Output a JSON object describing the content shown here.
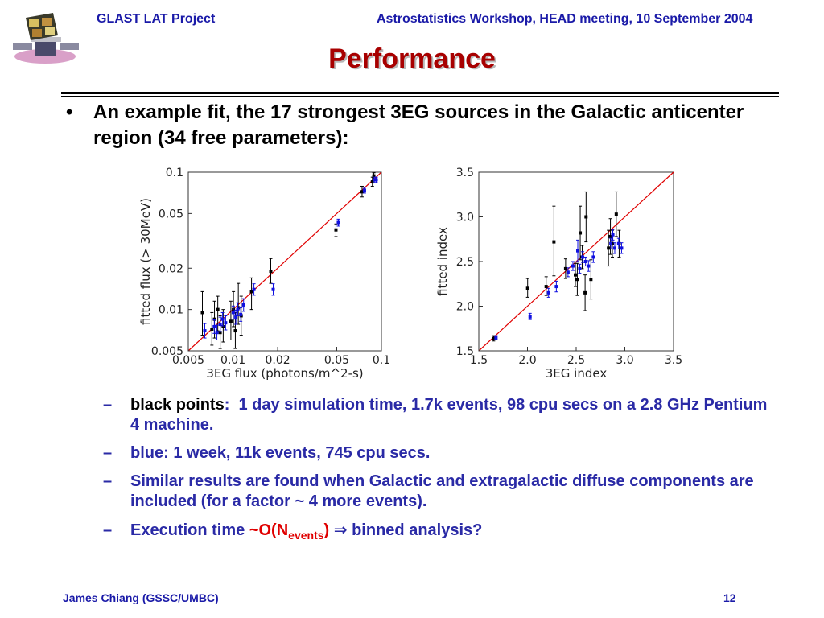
{
  "header": {
    "left": "GLAST LAT Project",
    "right": "Astrostatistics Workshop, HEAD meeting, 10 September 2004"
  },
  "title": "Performance",
  "bullet": {
    "symbol": "•",
    "text": "An example fit, the 17 strongest 3EG sources in the Galactic anticenter region (34 free parameters):"
  },
  "subbullets": {
    "dash": "–",
    "item1": {
      "label": "black points",
      "colon": ":",
      "text": "  1 day simulation time, 1.7k events, 98 cpu secs on a 2.8 GHz Pentium 4 machine."
    },
    "item2": {
      "text": "blue: 1 week, 11k events, 745 cpu secs."
    },
    "item3": {
      "text": "Similar results are found when Galactic and extragalactic diffuse components are included (for a factor ~ 4 more events)."
    },
    "item4": {
      "pre": "Execution time ",
      "tilde": "~",
      "o": "O(N",
      "sub": "events",
      "close": ")",
      "arrow": " ⇒",
      "post": " binned analysis?"
    }
  },
  "footer": {
    "left": "James Chiang (GSSC/UMBC)",
    "right": "12"
  },
  "colors": {
    "header": "#1a1aa8",
    "title": "#a80000",
    "subbullet": "#2a2aa6",
    "highlight": "#e00000",
    "black_points": "#000000",
    "blue_points": "#1010e0",
    "fit_line": "#e00000"
  },
  "chart_data": [
    {
      "type": "scatter",
      "title": "",
      "xlabel": "3EG flux (photons/m^2-s)",
      "ylabel": "fitted flux (> 30MeV)",
      "x_scale": "log",
      "y_scale": "log",
      "xlim": [
        0.005,
        0.1
      ],
      "ylim": [
        0.005,
        0.1
      ],
      "x_ticks": [
        0.005,
        0.01,
        0.02,
        0.05,
        0.1
      ],
      "x_tick_labels": [
        "0.005",
        "0.01",
        "0.02",
        "0.05",
        "0.1"
      ],
      "y_ticks": [
        0.005,
        0.01,
        0.02,
        0.05,
        0.1
      ],
      "y_tick_labels": [
        "0.005",
        "0.01",
        "0.02",
        "0.05",
        "0.1"
      ],
      "reference_line": "y = x",
      "grid": false,
      "series": [
        {
          "color": "black",
          "points": [
            {
              "x": 0.0063,
              "y": 0.0095,
              "lo": 0.0065,
              "hi": 0.0135
            },
            {
              "x": 0.0073,
              "y": 0.0072,
              "lo": 0.0055,
              "hi": 0.0095
            },
            {
              "x": 0.0076,
              "y": 0.0085,
              "lo": 0.0062,
              "hi": 0.0115
            },
            {
              "x": 0.008,
              "y": 0.01,
              "lo": 0.007,
              "hi": 0.0125
            },
            {
              "x": 0.0083,
              "y": 0.0068,
              "lo": 0.0052,
              "hi": 0.009
            },
            {
              "x": 0.0087,
              "y": 0.0075,
              "lo": 0.0058,
              "hi": 0.01
            },
            {
              "x": 0.0098,
              "y": 0.0082,
              "lo": 0.006,
              "hi": 0.0115
            },
            {
              "x": 0.0102,
              "y": 0.01,
              "lo": 0.0075,
              "hi": 0.0135
            },
            {
              "x": 0.0105,
              "y": 0.007,
              "lo": 0.0052,
              "hi": 0.0095
            },
            {
              "x": 0.011,
              "y": 0.0103,
              "lo": 0.0078,
              "hi": 0.0155
            },
            {
              "x": 0.0115,
              "y": 0.009,
              "lo": 0.0065,
              "hi": 0.0125
            },
            {
              "x": 0.0135,
              "y": 0.0135,
              "lo": 0.01,
              "hi": 0.017
            },
            {
              "x": 0.0182,
              "y": 0.019,
              "lo": 0.0155,
              "hi": 0.0235
            },
            {
              "x": 0.05,
              "y": 0.038,
              "lo": 0.034,
              "hi": 0.042
            },
            {
              "x": 0.075,
              "y": 0.072,
              "lo": 0.066,
              "hi": 0.079
            },
            {
              "x": 0.088,
              "y": 0.085,
              "lo": 0.079,
              "hi": 0.092
            },
            {
              "x": 0.09,
              "y": 0.094,
              "lo": 0.088,
              "hi": 0.099
            }
          ]
        },
        {
          "color": "blue",
          "points": [
            {
              "x": 0.0063,
              "y": 0.007,
              "lo": 0.0062,
              "hi": 0.0079
            },
            {
              "x": 0.0073,
              "y": 0.0075,
              "lo": 0.0067,
              "hi": 0.0084
            },
            {
              "x": 0.0076,
              "y": 0.0068,
              "lo": 0.006,
              "hi": 0.0077
            },
            {
              "x": 0.008,
              "y": 0.0078,
              "lo": 0.0069,
              "hi": 0.0088
            },
            {
              "x": 0.0083,
              "y": 0.0085,
              "lo": 0.0076,
              "hi": 0.0095
            },
            {
              "x": 0.0087,
              "y": 0.008,
              "lo": 0.0071,
              "hi": 0.009
            },
            {
              "x": 0.0098,
              "y": 0.0095,
              "lo": 0.0085,
              "hi": 0.0106
            },
            {
              "x": 0.0102,
              "y": 0.0088,
              "lo": 0.0078,
              "hi": 0.0099
            },
            {
              "x": 0.0105,
              "y": 0.01,
              "lo": 0.009,
              "hi": 0.0112
            },
            {
              "x": 0.011,
              "y": 0.0092,
              "lo": 0.0082,
              "hi": 0.0103
            },
            {
              "x": 0.0115,
              "y": 0.0108,
              "lo": 0.0097,
              "hi": 0.012
            },
            {
              "x": 0.0135,
              "y": 0.014,
              "lo": 0.0127,
              "hi": 0.0154
            },
            {
              "x": 0.0182,
              "y": 0.014,
              "lo": 0.0127,
              "hi": 0.0154
            },
            {
              "x": 0.05,
              "y": 0.043,
              "lo": 0.0405,
              "hi": 0.0455
            },
            {
              "x": 0.075,
              "y": 0.074,
              "lo": 0.0705,
              "hi": 0.0775
            },
            {
              "x": 0.088,
              "y": 0.088,
              "lo": 0.084,
              "hi": 0.092
            },
            {
              "x": 0.09,
              "y": 0.088,
              "lo": 0.084,
              "hi": 0.092
            }
          ]
        }
      ]
    },
    {
      "type": "scatter",
      "title": "",
      "xlabel": "3EG index",
      "ylabel": "fitted index",
      "x_scale": "linear",
      "y_scale": "linear",
      "xlim": [
        1.5,
        3.5
      ],
      "ylim": [
        1.5,
        3.5
      ],
      "x_ticks": [
        1.5,
        2.0,
        2.5,
        3.0,
        3.5
      ],
      "x_tick_labels": [
        "1.5",
        "2.0",
        "2.5",
        "3.0",
        "3.5"
      ],
      "y_ticks": [
        1.5,
        2.0,
        2.5,
        3.0,
        3.5
      ],
      "y_tick_labels": [
        "1.5",
        "2.0",
        "2.5",
        "3.0",
        "3.5"
      ],
      "reference_line": "y = x",
      "grid": false,
      "series": [
        {
          "color": "black",
          "points": [
            {
              "x": 1.66,
              "y": 1.64,
              "lo": 1.61,
              "hi": 1.67
            },
            {
              "x": 2.01,
              "y": 2.2,
              "lo": 2.1,
              "hi": 2.31
            },
            {
              "x": 2.2,
              "y": 2.22,
              "lo": 2.12,
              "hi": 2.33
            },
            {
              "x": 2.28,
              "y": 2.72,
              "lo": 2.34,
              "hi": 3.12
            },
            {
              "x": 2.4,
              "y": 2.42,
              "lo": 2.31,
              "hi": 2.53
            },
            {
              "x": 2.5,
              "y": 2.35,
              "lo": 2.22,
              "hi": 2.48
            },
            {
              "x": 2.52,
              "y": 2.3,
              "lo": 2.12,
              "hi": 2.48
            },
            {
              "x": 2.55,
              "y": 2.82,
              "lo": 2.52,
              "hi": 3.12
            },
            {
              "x": 2.57,
              "y": 2.55,
              "lo": 2.42,
              "hi": 2.68
            },
            {
              "x": 2.6,
              "y": 2.15,
              "lo": 1.95,
              "hi": 2.35
            },
            {
              "x": 2.61,
              "y": 3.0,
              "lo": 2.72,
              "hi": 3.28
            },
            {
              "x": 2.66,
              "y": 2.3,
              "lo": 2.08,
              "hi": 2.52
            },
            {
              "x": 2.84,
              "y": 2.65,
              "lo": 2.45,
              "hi": 2.85
            },
            {
              "x": 2.86,
              "y": 2.78,
              "lo": 2.58,
              "hi": 2.98
            },
            {
              "x": 2.88,
              "y": 2.7,
              "lo": 2.55,
              "hi": 2.85
            },
            {
              "x": 2.92,
              "y": 3.03,
              "lo": 2.78,
              "hi": 3.28
            },
            {
              "x": 2.95,
              "y": 2.7,
              "lo": 2.55,
              "hi": 2.85
            }
          ]
        },
        {
          "color": "blue",
          "points": [
            {
              "x": 1.66,
              "y": 1.65,
              "lo": 1.63,
              "hi": 1.67
            },
            {
              "x": 2.01,
              "y": 1.88,
              "lo": 1.85,
              "hi": 1.92
            },
            {
              "x": 2.2,
              "y": 2.15,
              "lo": 2.1,
              "hi": 2.2
            },
            {
              "x": 2.28,
              "y": 2.22,
              "lo": 2.16,
              "hi": 2.28
            },
            {
              "x": 2.4,
              "y": 2.38,
              "lo": 2.33,
              "hi": 2.43
            },
            {
              "x": 2.45,
              "y": 2.45,
              "lo": 2.4,
              "hi": 2.5
            },
            {
              "x": 2.5,
              "y": 2.62,
              "lo": 2.5,
              "hi": 2.74
            },
            {
              "x": 2.52,
              "y": 2.42,
              "lo": 2.37,
              "hi": 2.47
            },
            {
              "x": 2.55,
              "y": 2.55,
              "lo": 2.49,
              "hi": 2.61
            },
            {
              "x": 2.58,
              "y": 2.5,
              "lo": 2.45,
              "hi": 2.55
            },
            {
              "x": 2.61,
              "y": 2.45,
              "lo": 2.39,
              "hi": 2.51
            },
            {
              "x": 2.66,
              "y": 2.55,
              "lo": 2.49,
              "hi": 2.61
            },
            {
              "x": 2.84,
              "y": 2.7,
              "lo": 2.64,
              "hi": 2.76
            },
            {
              "x": 2.86,
              "y": 2.8,
              "lo": 2.74,
              "hi": 2.86
            },
            {
              "x": 2.88,
              "y": 2.65,
              "lo": 2.59,
              "hi": 2.71
            },
            {
              "x": 2.92,
              "y": 2.7,
              "lo": 2.64,
              "hi": 2.76
            },
            {
              "x": 2.95,
              "y": 2.65,
              "lo": 2.59,
              "hi": 2.71
            }
          ]
        }
      ]
    }
  ]
}
